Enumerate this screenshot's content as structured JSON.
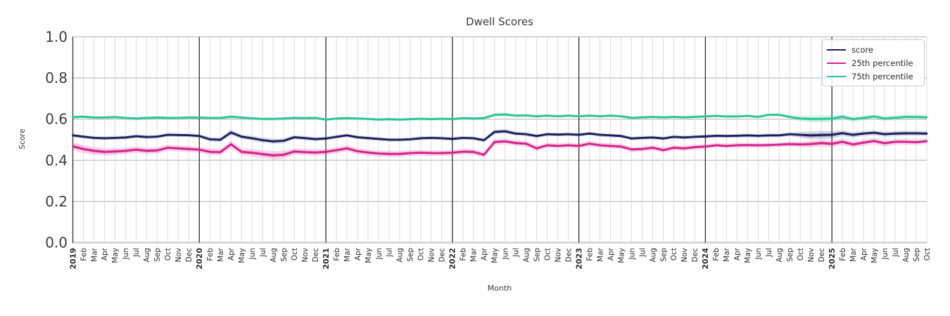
{
  "chart_data": {
    "type": "line",
    "title": "Dwell Scores",
    "xlabel": "Month",
    "ylabel": "Score",
    "ylim": [
      0.0,
      1.0
    ],
    "yticks": [
      0.0,
      0.2,
      0.4,
      0.6,
      0.8,
      1.0
    ],
    "ytick_labels": [
      "0.0",
      "0.2",
      "0.4",
      "0.6",
      "0.8",
      "1.0"
    ],
    "grid": true,
    "legend_position": "upper right",
    "x_labels": [
      "2019",
      "Feb",
      "Mar",
      "Apr",
      "May",
      "Jun",
      "Jul",
      "Aug",
      "Sep",
      "Oct",
      "Nov",
      "Dec",
      "2020",
      "Feb",
      "Mar",
      "Apr",
      "May",
      "Jun",
      "Jul",
      "Aug",
      "Sep",
      "Oct",
      "Nov",
      "Dec",
      "2021",
      "Feb",
      "Mar",
      "Apr",
      "May",
      "Jun",
      "Jul",
      "Aug",
      "Sep",
      "Oct",
      "Nov",
      "Dec",
      "2022",
      "Feb",
      "Mar",
      "Apr",
      "May",
      "Jun",
      "Jul",
      "Aug",
      "Sep",
      "Oct",
      "Nov",
      "Dec",
      "2023",
      "Feb",
      "Mar",
      "Apr",
      "May",
      "Jun",
      "Jul",
      "Aug",
      "Sep",
      "Oct",
      "Nov",
      "Dec",
      "2024",
      "Feb",
      "Mar",
      "Apr",
      "May",
      "Jun",
      "Jul",
      "Aug",
      "Sep",
      "Oct",
      "Nov",
      "Dec",
      "2025",
      "Feb",
      "Mar",
      "Apr",
      "May",
      "Jun",
      "Jul",
      "Aug",
      "Sep",
      "Oct"
    ],
    "year_tick_indices": [
      0,
      12,
      24,
      36,
      48,
      60,
      72
    ],
    "series": [
      {
        "name": "score",
        "color": "#1c1c5e",
        "values": [
          0.521,
          0.515,
          0.509,
          0.507,
          0.509,
          0.511,
          0.517,
          0.513,
          0.515,
          0.524,
          0.523,
          0.522,
          0.518,
          0.502,
          0.5,
          0.535,
          0.515,
          0.507,
          0.498,
          0.492,
          0.495,
          0.512,
          0.508,
          0.503,
          0.506,
          0.514,
          0.521,
          0.512,
          0.508,
          0.504,
          0.5,
          0.5,
          0.502,
          0.507,
          0.509,
          0.507,
          0.504,
          0.509,
          0.507,
          0.498,
          0.538,
          0.541,
          0.53,
          0.527,
          0.518,
          0.527,
          0.525,
          0.527,
          0.524,
          0.53,
          0.524,
          0.521,
          0.518,
          0.506,
          0.509,
          0.511,
          0.506,
          0.514,
          0.511,
          0.514,
          0.516,
          0.519,
          0.518,
          0.519,
          0.521,
          0.519,
          0.521,
          0.521,
          0.527,
          0.524,
          0.521,
          0.523,
          0.524,
          0.532,
          0.524,
          0.53,
          0.534,
          0.527,
          0.53,
          0.531,
          0.531,
          0.53
        ],
        "band": [
          0.009,
          0.009,
          0.009,
          0.009,
          0.009,
          0.009,
          0.009,
          0.009,
          0.009,
          0.009,
          0.009,
          0.009,
          0.01,
          0.011,
          0.011,
          0.013,
          0.011,
          0.011,
          0.012,
          0.012,
          0.012,
          0.01,
          0.01,
          0.01,
          0.009,
          0.009,
          0.009,
          0.009,
          0.009,
          0.009,
          0.009,
          0.009,
          0.009,
          0.009,
          0.009,
          0.009,
          0.009,
          0.009,
          0.009,
          0.01,
          0.012,
          0.011,
          0.01,
          0.01,
          0.01,
          0.009,
          0.009,
          0.009,
          0.009,
          0.009,
          0.009,
          0.009,
          0.009,
          0.009,
          0.009,
          0.009,
          0.009,
          0.009,
          0.009,
          0.009,
          0.009,
          0.009,
          0.009,
          0.009,
          0.009,
          0.009,
          0.009,
          0.009,
          0.01,
          0.014,
          0.018,
          0.02,
          0.018,
          0.014,
          0.013,
          0.012,
          0.012,
          0.012,
          0.012,
          0.012,
          0.012,
          0.012
        ]
      },
      {
        "name": "25th percentile",
        "color": "#d5218c",
        "values": [
          0.468,
          0.455,
          0.446,
          0.441,
          0.443,
          0.446,
          0.452,
          0.446,
          0.448,
          0.461,
          0.458,
          0.455,
          0.452,
          0.441,
          0.44,
          0.478,
          0.441,
          0.437,
          0.43,
          0.424,
          0.427,
          0.443,
          0.44,
          0.438,
          0.441,
          0.449,
          0.458,
          0.444,
          0.438,
          0.433,
          0.431,
          0.431,
          0.435,
          0.437,
          0.435,
          0.435,
          0.437,
          0.442,
          0.441,
          0.427,
          0.489,
          0.492,
          0.484,
          0.481,
          0.458,
          0.473,
          0.47,
          0.473,
          0.47,
          0.481,
          0.473,
          0.47,
          0.467,
          0.453,
          0.455,
          0.461,
          0.45,
          0.461,
          0.458,
          0.464,
          0.467,
          0.473,
          0.47,
          0.473,
          0.474,
          0.473,
          0.474,
          0.476,
          0.479,
          0.477,
          0.479,
          0.484,
          0.48,
          0.49,
          0.477,
          0.486,
          0.494,
          0.483,
          0.49,
          0.49,
          0.488,
          0.493
        ],
        "band": [
          0.02,
          0.02,
          0.019,
          0.018,
          0.017,
          0.016,
          0.016,
          0.016,
          0.016,
          0.015,
          0.015,
          0.015,
          0.015,
          0.016,
          0.016,
          0.018,
          0.017,
          0.018,
          0.019,
          0.02,
          0.019,
          0.016,
          0.016,
          0.016,
          0.015,
          0.015,
          0.015,
          0.015,
          0.015,
          0.015,
          0.015,
          0.015,
          0.014,
          0.014,
          0.014,
          0.014,
          0.014,
          0.014,
          0.014,
          0.015,
          0.015,
          0.014,
          0.014,
          0.014,
          0.014,
          0.013,
          0.013,
          0.013,
          0.013,
          0.013,
          0.013,
          0.013,
          0.013,
          0.013,
          0.013,
          0.013,
          0.013,
          0.013,
          0.013,
          0.013,
          0.012,
          0.012,
          0.012,
          0.012,
          0.012,
          0.012,
          0.012,
          0.012,
          0.013,
          0.014,
          0.016,
          0.017,
          0.017,
          0.016,
          0.015,
          0.015,
          0.015,
          0.015,
          0.014,
          0.014,
          0.014,
          0.014
        ]
      },
      {
        "name": "75th percentile",
        "color": "#2bc494",
        "values": [
          0.61,
          0.612,
          0.608,
          0.608,
          0.61,
          0.606,
          0.603,
          0.606,
          0.608,
          0.606,
          0.606,
          0.608,
          0.608,
          0.606,
          0.606,
          0.612,
          0.608,
          0.604,
          0.601,
          0.601,
          0.603,
          0.606,
          0.605,
          0.606,
          0.598,
          0.603,
          0.605,
          0.603,
          0.601,
          0.598,
          0.6,
          0.598,
          0.6,
          0.602,
          0.6,
          0.602,
          0.6,
          0.605,
          0.603,
          0.605,
          0.621,
          0.623,
          0.617,
          0.618,
          0.614,
          0.617,
          0.614,
          0.617,
          0.614,
          0.617,
          0.614,
          0.617,
          0.614,
          0.606,
          0.609,
          0.611,
          0.609,
          0.611,
          0.609,
          0.611,
          0.613,
          0.616,
          0.613,
          0.613,
          0.616,
          0.611,
          0.621,
          0.621,
          0.611,
          0.603,
          0.601,
          0.601,
          0.603,
          0.612,
          0.6,
          0.606,
          0.613,
          0.603,
          0.607,
          0.611,
          0.611,
          0.609
        ],
        "band": [
          0.007,
          0.007,
          0.007,
          0.007,
          0.007,
          0.007,
          0.007,
          0.007,
          0.007,
          0.007,
          0.007,
          0.007,
          0.007,
          0.007,
          0.007,
          0.009,
          0.008,
          0.008,
          0.008,
          0.008,
          0.008,
          0.007,
          0.007,
          0.007,
          0.007,
          0.007,
          0.007,
          0.007,
          0.007,
          0.007,
          0.007,
          0.007,
          0.007,
          0.007,
          0.007,
          0.007,
          0.007,
          0.007,
          0.007,
          0.008,
          0.01,
          0.009,
          0.008,
          0.008,
          0.008,
          0.007,
          0.007,
          0.007,
          0.007,
          0.007,
          0.007,
          0.007,
          0.007,
          0.007,
          0.007,
          0.007,
          0.007,
          0.007,
          0.007,
          0.007,
          0.007,
          0.007,
          0.007,
          0.007,
          0.007,
          0.007,
          0.008,
          0.008,
          0.009,
          0.013,
          0.016,
          0.018,
          0.016,
          0.013,
          0.012,
          0.011,
          0.011,
          0.011,
          0.011,
          0.011,
          0.011,
          0.011
        ]
      }
    ],
    "style": {
      "grid_color_minor": "#dcdcdc",
      "grid_color_major_h": "#c9c9c9",
      "year_line_color": "#2f2f2f",
      "tick_label_color": "#2e2e2e",
      "ytick_label_color": "#3c3c3c",
      "baseline_color": "#d0d0d0"
    }
  }
}
